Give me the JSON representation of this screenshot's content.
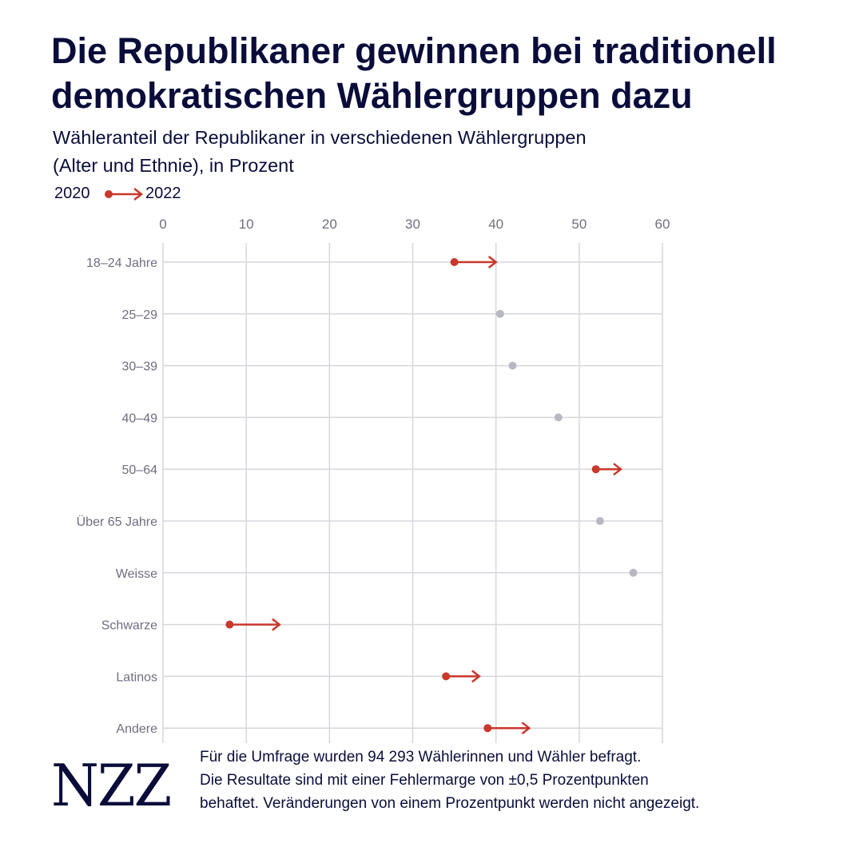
{
  "title": "Die Republikaner gewinnen bei traditionell demokratischen Wählergruppen dazu",
  "subtitle_line1": "Wähleranteil der Republikaner in verschiedenen Wählergruppen",
  "subtitle_line2": "(Alter und Ethnie), in Prozent",
  "legend": {
    "from_label": "2020",
    "to_label": "2022"
  },
  "colors": {
    "change": "#c8382b",
    "nochange": "#b8b8c2",
    "grid": "#d6d6de",
    "axis_text": "#6e6e80",
    "text": "#0a0d3a"
  },
  "chart_data": {
    "type": "dot-arrow",
    "x_ticks": [
      0,
      10,
      20,
      30,
      40,
      50,
      60
    ],
    "xlim": [
      0,
      60
    ],
    "grid": true,
    "categories": [
      "18–24 Jahre",
      "25–29",
      "30–39",
      "40–49",
      "50–64",
      "Über 65 Jahre",
      "Weisse",
      "Schwarze",
      "Latinos",
      "Andere"
    ],
    "values_2020": [
      35,
      40.5,
      42,
      47.5,
      52,
      52.5,
      56.5,
      8,
      34,
      39
    ],
    "values_2022": [
      40,
      null,
      null,
      null,
      55,
      null,
      null,
      14,
      38,
      44
    ]
  },
  "footnote": {
    "line1": "Für die Umfrage wurden 94 293 Wählerinnen und Wähler befragt.",
    "line2": "Die Resultate sind mit einer Fehlermarge von ±0,5 Prozentpunkten",
    "line3": "behaftet. Veränderungen von einem Prozentpunkt werden nicht angezeigt."
  },
  "logo": "NZZ"
}
